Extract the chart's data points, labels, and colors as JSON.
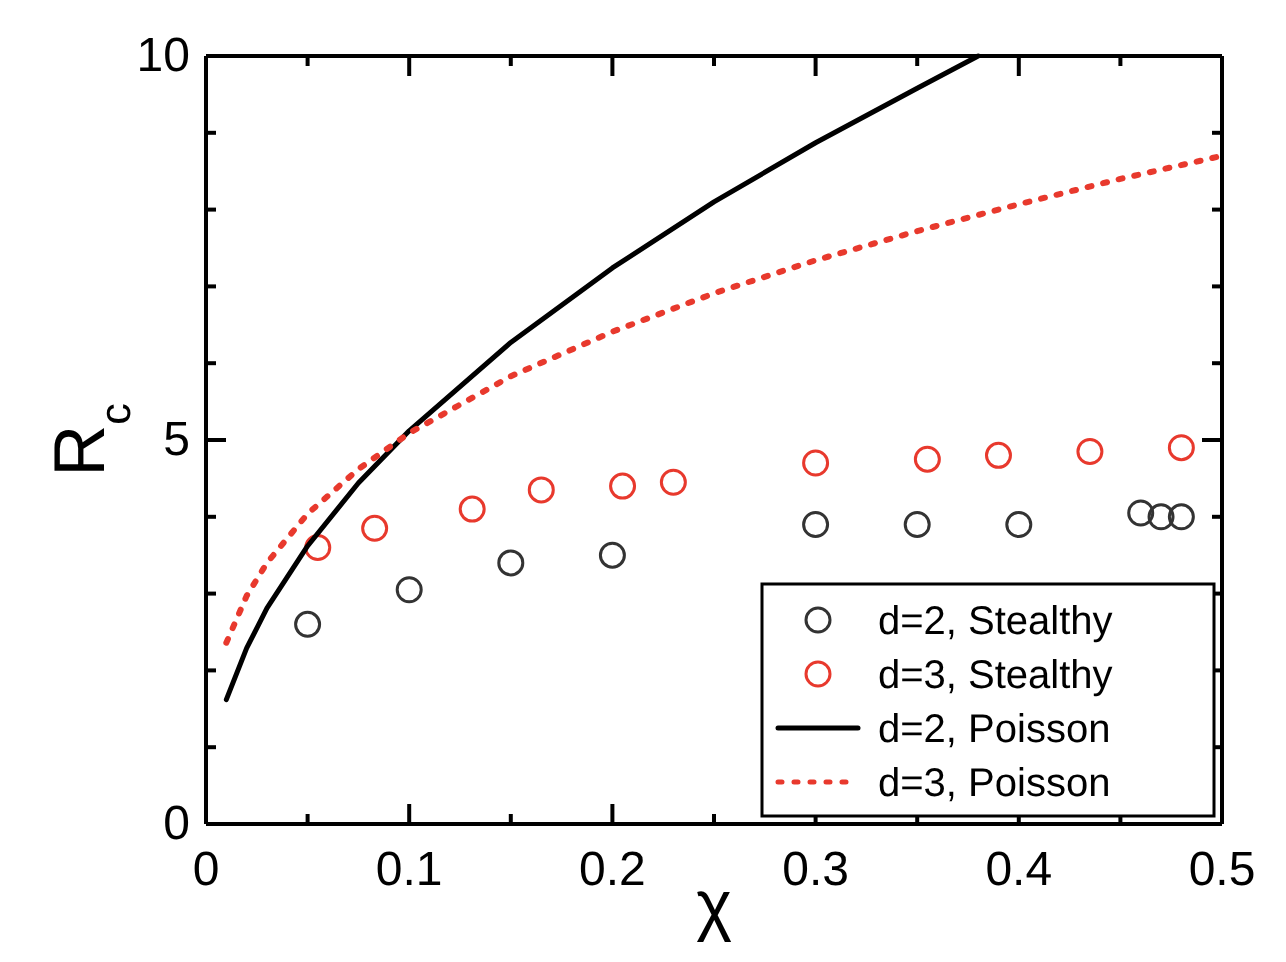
{
  "chart_data": {
    "type": "scatter",
    "xlabel": "χ",
    "ylabel": "R$_{c}$",
    "xlim": [
      0,
      0.5
    ],
    "ylim": [
      0,
      10
    ],
    "xticks": [
      0,
      {
        "value": 0.05,
        "label": null
      },
      0.1,
      {
        "value": 0.15,
        "label": null
      },
      0.2,
      {
        "value": 0.25,
        "label": null
      },
      0.3,
      {
        "value": 0.35,
        "label": null
      },
      0.4,
      {
        "value": 0.45,
        "label": null
      },
      0.5
    ],
    "yticks": [
      0,
      {
        "value": 1,
        "label": null
      },
      {
        "value": 2,
        "label": null
      },
      {
        "value": 3,
        "label": null
      },
      {
        "value": 4,
        "label": null
      },
      5,
      {
        "value": 6,
        "label": null
      },
      {
        "value": 7,
        "label": null
      },
      {
        "value": 8,
        "label": null
      },
      {
        "value": 9,
        "label": null
      },
      10
    ],
    "grid": false,
    "legend": "bottom right",
    "series": [
      {
        "name": "d=2, Stealthy",
        "marker": "circle",
        "color": "#333333",
        "x": [
          0.05,
          0.1,
          0.15,
          0.2,
          0.3,
          0.35,
          0.4,
          0.46,
          0.47,
          0.48
        ],
        "values": [
          2.6,
          3.05,
          3.4,
          3.5,
          3.9,
          3.9,
          3.9,
          4.05,
          4.0,
          4.0
        ]
      },
      {
        "name": "d=3, Stealthy",
        "marker": "circle",
        "color": "#e8392d",
        "x": [
          0.055,
          0.083,
          0.131,
          0.165,
          0.205,
          0.23,
          0.3,
          0.355,
          0.39,
          0.435,
          0.48
        ],
        "values": [
          3.6,
          3.85,
          4.1,
          4.35,
          4.4,
          4.45,
          4.7,
          4.75,
          4.8,
          4.85,
          4.9
        ]
      },
      {
        "name": "d=2, Poisson",
        "type": "line",
        "line_style": "solid",
        "color": "#000000",
        "x": [
          0.01,
          0.02,
          0.03,
          0.05,
          0.075,
          0.1,
          0.15,
          0.2,
          0.25,
          0.3,
          0.35,
          0.38
        ],
        "values": [
          1.62,
          2.29,
          2.81,
          3.62,
          4.44,
          5.12,
          6.27,
          7.24,
          8.1,
          8.87,
          9.58,
          10.0
        ]
      },
      {
        "name": "d=3, Poisson",
        "type": "line",
        "line_style": "dotted",
        "color": "#e8392d",
        "x": [
          0.01,
          0.02,
          0.03,
          0.05,
          0.075,
          0.1,
          0.15,
          0.2,
          0.25,
          0.3,
          0.35,
          0.4,
          0.45,
          0.5
        ],
        "values": [
          2.36,
          2.97,
          3.4,
          4.04,
          4.62,
          5.09,
          5.83,
          6.41,
          6.91,
          7.34,
          7.72,
          8.07,
          8.4,
          8.7
        ]
      }
    ]
  }
}
